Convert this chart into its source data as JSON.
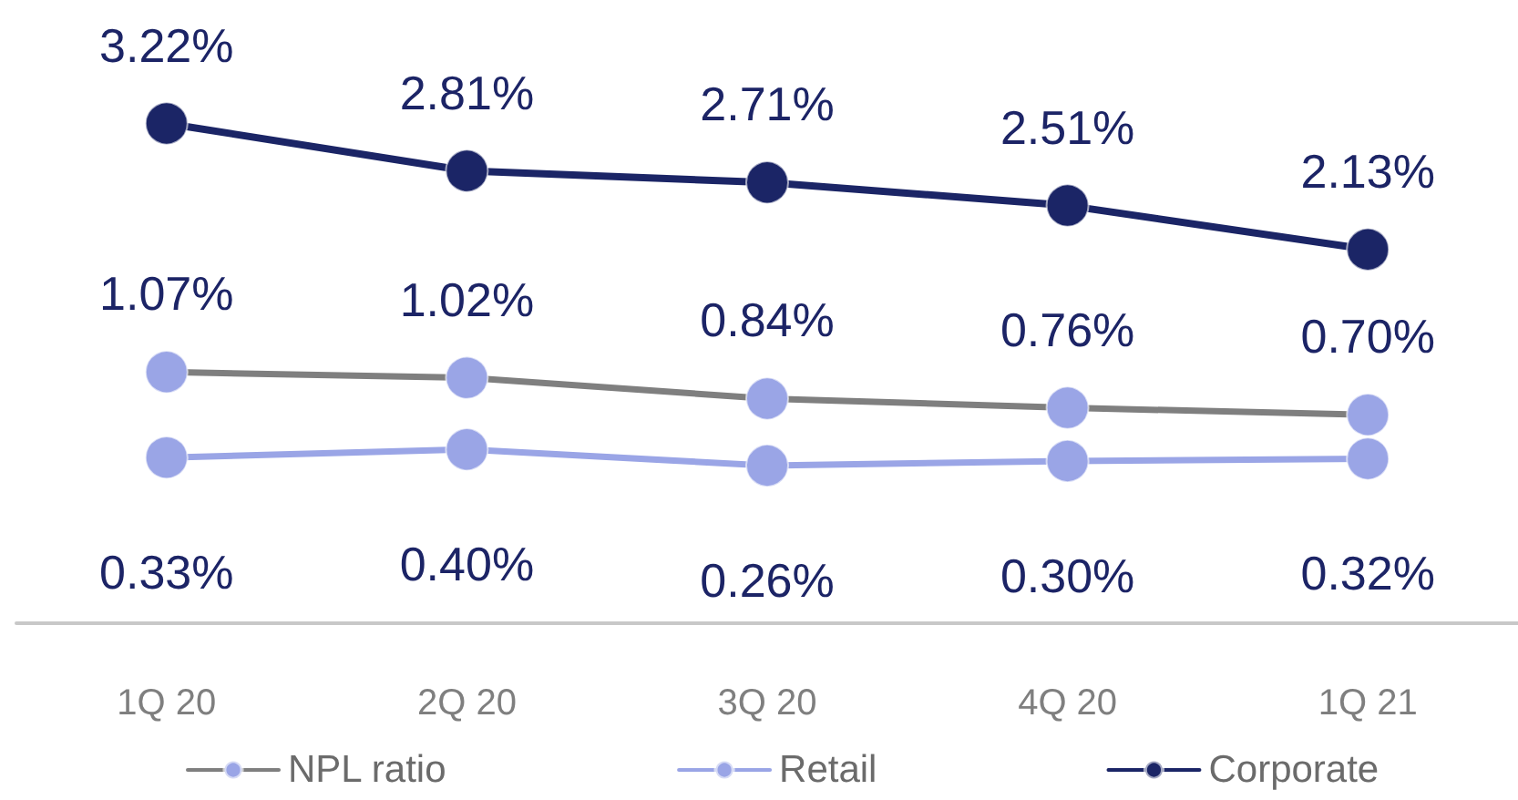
{
  "chart_data": {
    "type": "line",
    "categories": [
      "1Q 20",
      "2Q 20",
      "3Q 20",
      "4Q 20",
      "1Q 21"
    ],
    "series": [
      {
        "name": "NPL ratio",
        "color": "#7f7f7f",
        "colors": [
          "#9aa5e6",
          "#9aa5e6",
          "#9aa5e6",
          "#9aa5e6",
          "#9aa5e6"
        ],
        "values": [
          1.07,
          1.02,
          0.84,
          0.76,
          0.7
        ],
        "value_labels": [
          "1.07%",
          "1.02%",
          "0.84%",
          "0.76%",
          "0.70%"
        ]
      },
      {
        "name": "Retail",
        "color": "#9aa5e6",
        "values": [
          0.33,
          0.4,
          0.26,
          0.3,
          0.32
        ],
        "value_labels": [
          "0.33%",
          "0.40%",
          "0.26%",
          "0.30%",
          "0.32%"
        ]
      },
      {
        "name": "Corporate",
        "color": "#1b2566",
        "values": [
          3.22,
          2.81,
          2.71,
          2.51,
          2.13
        ],
        "value_labels": [
          "3.22%",
          "2.81%",
          "2.71%",
          "2.51%",
          "2.13%"
        ]
      }
    ],
    "marker": "circle",
    "line_style": "solid",
    "legend": "bottom",
    "grid": false
  }
}
